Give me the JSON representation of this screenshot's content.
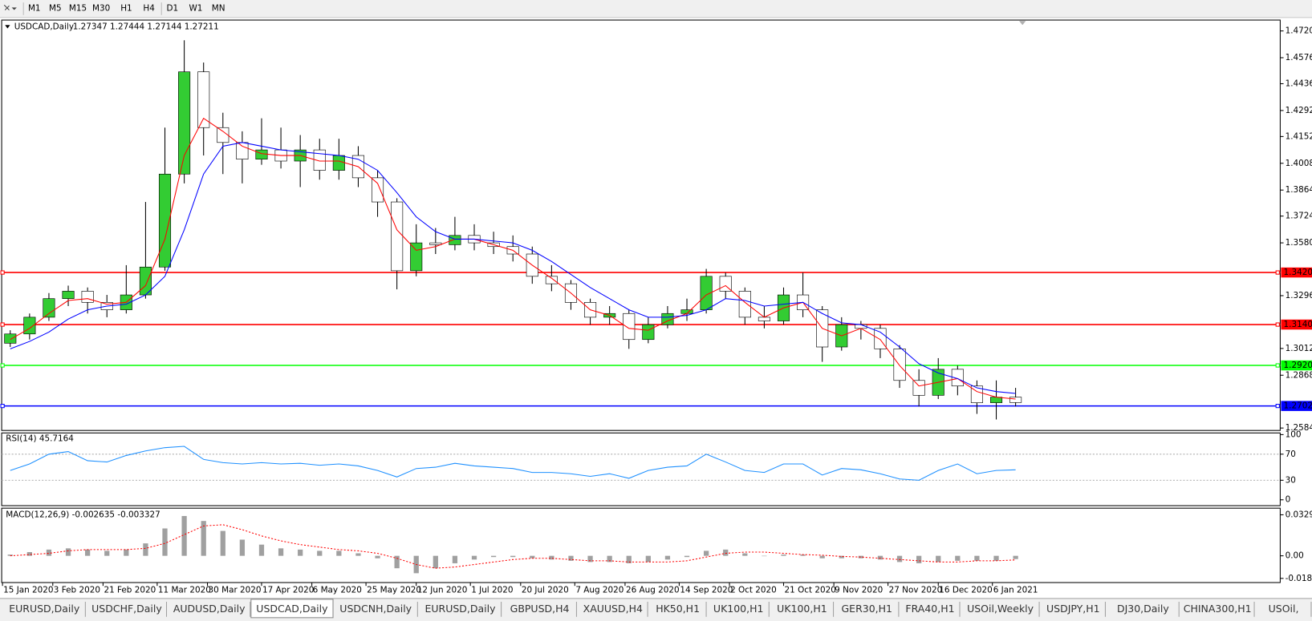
{
  "toolbar": {
    "timeframes": [
      "M1",
      "M5",
      "M15",
      "M30",
      "H1",
      "H4",
      "D1",
      "W1",
      "MN"
    ]
  },
  "chart_data": {
    "type": "candlestick",
    "title": "USDCAD,Daily",
    "quote": [
      1.27347,
      1.27444,
      1.27144,
      1.27211
    ],
    "x": [
      2,
      7,
      12,
      17,
      22,
      27,
      32,
      37,
      42,
      47,
      52,
      57,
      62,
      67,
      72,
      77,
      82,
      87,
      92,
      97,
      102,
      107,
      112,
      117,
      122,
      127,
      132,
      137,
      142,
      147,
      152,
      157,
      162,
      167,
      172,
      177,
      182,
      187,
      192,
      197,
      202,
      207,
      212,
      217,
      222,
      227,
      232,
      237,
      242,
      247,
      252,
      257,
      262
    ],
    "open": [
      1.304,
      1.309,
      1.318,
      1.328,
      1.332,
      1.326,
      1.322,
      1.33,
      1.345,
      1.395,
      1.45,
      1.42,
      1.412,
      1.403,
      1.408,
      1.402,
      1.408,
      1.397,
      1.405,
      1.393,
      1.38,
      1.343,
      1.358,
      1.357,
      1.362,
      1.358,
      1.356,
      1.352,
      1.34,
      1.336,
      1.326,
      1.318,
      1.32,
      1.306,
      1.314,
      1.32,
      1.322,
      1.34,
      1.332,
      1.318,
      1.316,
      1.33,
      1.322,
      1.302,
      1.314,
      1.312,
      1.301,
      1.284,
      1.276,
      1.29,
      1.281,
      1.272,
      1.275
    ],
    "high": [
      1.311,
      1.32,
      1.331,
      1.335,
      1.334,
      1.33,
      1.346,
      1.38,
      1.42,
      1.467,
      1.455,
      1.428,
      1.418,
      1.425,
      1.42,
      1.416,
      1.414,
      1.414,
      1.41,
      1.397,
      1.382,
      1.368,
      1.366,
      1.372,
      1.368,
      1.364,
      1.362,
      1.356,
      1.346,
      1.338,
      1.328,
      1.324,
      1.322,
      1.318,
      1.324,
      1.328,
      1.344,
      1.342,
      1.334,
      1.324,
      1.334,
      1.342,
      1.324,
      1.318,
      1.316,
      1.314,
      1.303,
      1.29,
      1.296,
      1.292,
      1.284,
      1.284,
      1.28
    ],
    "low": [
      1.302,
      1.306,
      1.316,
      1.324,
      1.32,
      1.318,
      1.32,
      1.328,
      1.343,
      1.39,
      1.405,
      1.395,
      1.39,
      1.4,
      1.398,
      1.388,
      1.392,
      1.392,
      1.388,
      1.372,
      1.333,
      1.34,
      1.352,
      1.354,
      1.354,
      1.352,
      1.348,
      1.336,
      1.332,
      1.322,
      1.314,
      1.314,
      1.301,
      1.304,
      1.312,
      1.316,
      1.32,
      1.328,
      1.314,
      1.312,
      1.314,
      1.318,
      1.294,
      1.3,
      1.306,
      1.296,
      1.28,
      1.27,
      1.274,
      1.276,
      1.266,
      1.263,
      1.27
    ],
    "close": [
      1.309,
      1.318,
      1.328,
      1.332,
      1.326,
      1.322,
      1.33,
      1.345,
      1.395,
      1.45,
      1.42,
      1.412,
      1.403,
      1.408,
      1.402,
      1.408,
      1.397,
      1.405,
      1.393,
      1.38,
      1.343,
      1.358,
      1.357,
      1.362,
      1.358,
      1.356,
      1.352,
      1.34,
      1.336,
      1.326,
      1.318,
      1.32,
      1.306,
      1.314,
      1.32,
      1.322,
      1.34,
      1.332,
      1.318,
      1.316,
      1.33,
      1.322,
      1.302,
      1.314,
      1.312,
      1.301,
      1.284,
      1.276,
      1.29,
      1.281,
      1.272,
      1.275,
      1.2721
    ],
    "up_color": "#33cc33",
    "down_color": "#ffffff",
    "moving_averages": [
      {
        "color": "#ff0000",
        "values": [
          1.306,
          1.312,
          1.32,
          1.327,
          1.328,
          1.325,
          1.326,
          1.335,
          1.36,
          1.405,
          1.425,
          1.418,
          1.41,
          1.406,
          1.405,
          1.405,
          1.402,
          1.402,
          1.399,
          1.39,
          1.365,
          1.354,
          1.356,
          1.36,
          1.36,
          1.357,
          1.354,
          1.346,
          1.339,
          1.331,
          1.322,
          1.319,
          1.312,
          1.311,
          1.316,
          1.32,
          1.33,
          1.335,
          1.326,
          1.318,
          1.323,
          1.326,
          1.312,
          1.308,
          1.312,
          1.306,
          1.292,
          1.281,
          1.283,
          1.285,
          1.278,
          1.275,
          1.274
        ]
      },
      {
        "color": "#0000ff",
        "values": [
          1.301,
          1.305,
          1.31,
          1.317,
          1.322,
          1.324,
          1.325,
          1.33,
          1.34,
          1.365,
          1.395,
          1.41,
          1.412,
          1.41,
          1.408,
          1.407,
          1.406,
          1.405,
          1.403,
          1.397,
          1.385,
          1.372,
          1.364,
          1.36,
          1.36,
          1.359,
          1.358,
          1.354,
          1.348,
          1.341,
          1.334,
          1.328,
          1.322,
          1.318,
          1.318,
          1.319,
          1.322,
          1.328,
          1.327,
          1.324,
          1.325,
          1.326,
          1.32,
          1.315,
          1.314,
          1.31,
          1.302,
          1.293,
          1.288,
          1.285,
          1.28,
          1.278,
          1.277
        ]
      }
    ],
    "levels": [
      {
        "value": 1.34206,
        "color": "#ff0000"
      },
      {
        "value": 1.31405,
        "color": "#ff0000"
      },
      {
        "value": 1.29208,
        "color": "#00ff00"
      },
      {
        "value": 1.27027,
        "color": "#0000ff"
      }
    ],
    "xlim": [
      0,
      330
    ],
    "ylim": [
      1.2571,
      1.4774
    ],
    "yticks": [
      {
        "value": 1.472,
        "label": "1.47200"
      },
      {
        "value": 1.4576,
        "label": "1.45760"
      },
      {
        "value": 1.4436,
        "label": "1.44360"
      },
      {
        "value": 1.4292,
        "label": "1.42920"
      },
      {
        "value": 1.4152,
        "label": "1.41520"
      },
      {
        "value": 1.4008,
        "label": "1.40080"
      },
      {
        "value": 1.3864,
        "label": "1.38640"
      },
      {
        "value": 1.3724,
        "label": "1.37240"
      },
      {
        "value": 1.358,
        "label": "1.35800"
      },
      {
        "value": 1.3296,
        "label": "1.32960"
      },
      {
        "value": 1.3012,
        "label": "1.30120"
      },
      {
        "value": 1.2868,
        "label": "1.28680"
      },
      {
        "value": 1.2584,
        "label": "1.25840"
      }
    ],
    "xticks": [
      {
        "value": 0,
        "label": "15 Jan 2020"
      },
      {
        "value": 13,
        "label": "3 Feb 2020"
      },
      {
        "value": 26,
        "label": "21 Feb 2020"
      },
      {
        "value": 40,
        "label": "11 Mar 2020"
      },
      {
        "value": 53,
        "label": "30 Mar 2020"
      },
      {
        "value": 67,
        "label": "17 Apr 2020"
      },
      {
        "value": 80,
        "label": "6 May 2020"
      },
      {
        "value": 94,
        "label": "25 May 2020"
      },
      {
        "value": 107,
        "label": "12 Jun 2020"
      },
      {
        "value": 121,
        "label": "1 Jul 2020"
      },
      {
        "value": 134,
        "label": "20 Jul 2020"
      },
      {
        "value": 148,
        "label": "7 Aug 2020"
      },
      {
        "value": 161,
        "label": "26 Aug 2020"
      },
      {
        "value": 175,
        "label": "14 Sep 2020"
      },
      {
        "value": 188,
        "label": "2 Oct 2020"
      },
      {
        "value": 202,
        "label": "21 Oct 2020"
      },
      {
        "value": 215,
        "label": "9 Nov 2020"
      },
      {
        "value": 229,
        "label": "27 Nov 2020"
      },
      {
        "value": 242,
        "label": "16 Dec 2020"
      },
      {
        "value": 256,
        "label": "6 Jan 2021"
      }
    ],
    "rsi": {
      "title": "RSI(14)",
      "value": 45.7164,
      "color": "#1e90ff",
      "values": [
        45,
        55,
        70,
        74,
        60,
        58,
        68,
        75,
        80,
        82,
        62,
        57,
        55,
        57,
        55,
        56,
        53,
        55,
        52,
        45,
        35,
        48,
        50,
        56,
        52,
        50,
        48,
        42,
        42,
        40,
        36,
        40,
        33,
        45,
        50,
        52,
        70,
        58,
        45,
        42,
        55,
        55,
        38,
        48,
        46,
        40,
        32,
        30,
        45,
        55,
        40,
        45,
        46
      ],
      "ylim": [
        0,
        100
      ],
      "yticks": [
        100,
        70,
        30,
        0
      ],
      "levels": [
        70,
        30
      ]
    },
    "macd": {
      "title": "MACD(12,26,9)",
      "readout": [
        -0.002635,
        -0.003327
      ],
      "histogram_color": "#a0a0a0",
      "signal_color": "#ff0000",
      "histogram": [
        0.001,
        0.003,
        0.005,
        0.006,
        0.005,
        0.004,
        0.005,
        0.01,
        0.022,
        0.032,
        0.028,
        0.02,
        0.013,
        0.009,
        0.006,
        0.005,
        0.004,
        0.004,
        0.002,
        -0.002,
        -0.01,
        -0.014,
        -0.01,
        -0.006,
        -0.003,
        -0.001,
        -0.001,
        -0.002,
        -0.003,
        -0.004,
        -0.005,
        -0.005,
        -0.006,
        -0.005,
        -0.003,
        -0.001,
        0.004,
        0.005,
        0.002,
        0,
        0.001,
        0.001,
        -0.002,
        -0.002,
        -0.002,
        -0.003,
        -0.005,
        -0.006,
        -0.005,
        -0.004,
        -0.004,
        -0.004,
        -0.0026
      ],
      "signal": [
        0,
        0.001,
        0.002,
        0.004,
        0.005,
        0.005,
        0.005,
        0.006,
        0.01,
        0.017,
        0.024,
        0.025,
        0.021,
        0.016,
        0.012,
        0.009,
        0.007,
        0.005,
        0.004,
        0.002,
        -0.002,
        -0.007,
        -0.01,
        -0.009,
        -0.007,
        -0.005,
        -0.003,
        -0.002,
        -0.002,
        -0.003,
        -0.004,
        -0.004,
        -0.005,
        -0.005,
        -0.005,
        -0.004,
        -0.001,
        0.002,
        0.003,
        0.003,
        0.002,
        0.001,
        0.0005,
        -0.0005,
        -0.001,
        -0.002,
        -0.003,
        -0.004,
        -0.005,
        -0.005,
        -0.004,
        -0.004,
        -0.0033
      ],
      "ylim": [
        -0.0215,
        0.0383
      ],
      "yticks": [
        0.032972,
        {
          "value": 0,
          "label": "0.00"
        },
        -0.01815
      ]
    }
  },
  "tabs": {
    "active": 3,
    "items": [
      "EURUSD,Daily",
      "USDCHF,Daily",
      "AUDUSD,Daily",
      "USDCAD,Daily",
      "USDCNH,Daily",
      "EURUSD,Daily",
      "GBPUSD,H4",
      "XAUUSD,H4",
      "HK50,H1",
      "UK100,H1",
      "UK100,H1",
      "GER30,H1",
      "FRA40,H1",
      "USOil,Weekly",
      "USDJPY,H1",
      "DJ30,Daily",
      "CHINA300,H1",
      "USOil,"
    ]
  }
}
